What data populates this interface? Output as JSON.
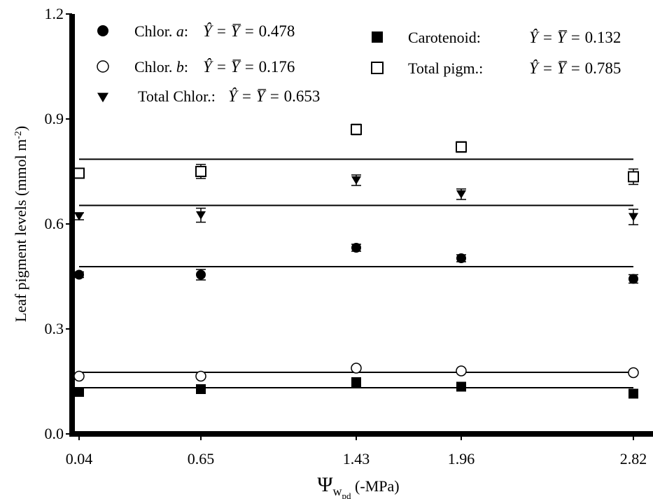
{
  "chart_data": {
    "type": "scatter",
    "xlabel_symbol": "Ψ",
    "xlabel_sub": "w",
    "xlabel_subsub": "pd",
    "xlabel_suffix": " (-MPa)",
    "ylabel": "Leaf pigment levels (mmol m",
    "ylabel_sup": "-2",
    "ylabel_close": ")",
    "x": [
      0.04,
      0.65,
      1.43,
      1.96,
      2.82
    ],
    "x_tick_labels": [
      "0.04",
      "0.65",
      "1.43",
      "1.96",
      "2.82"
    ],
    "x_axis_scale": "categorical-linear",
    "xlim": [
      0.0,
      2.85
    ],
    "ylim": [
      0.0,
      1.2
    ],
    "y_ticks": [
      0.0,
      0.3,
      0.6,
      0.9,
      1.2
    ],
    "y_tick_labels": [
      "0.0",
      "0.3",
      "0.6",
      "0.9",
      "1.2"
    ],
    "grid": false,
    "legend_position": "top",
    "series": [
      {
        "name": "Chlor. a",
        "name_main": "Chlor. ",
        "name_italic": "a",
        "name_suffix": ":",
        "marker": "filled-circle",
        "values": [
          0.455,
          0.455,
          0.532,
          0.502,
          0.443
        ],
        "errors": [
          0.008,
          0.015,
          0.01,
          0.01,
          0.012
        ],
        "fit_mean": 0.478,
        "equation_value": "0.478"
      },
      {
        "name": "Chlor. b",
        "name_main": "Chlor. ",
        "name_italic": "b",
        "name_suffix": ":",
        "marker": "open-circle",
        "values": [
          0.165,
          0.165,
          0.188,
          0.18,
          0.175
        ],
        "errors": [
          0.005,
          0.005,
          0.006,
          0.005,
          0.005
        ],
        "fit_mean": 0.176,
        "equation_value": "0.176"
      },
      {
        "name": "Total Chlor.",
        "name_main": "Total Chlor.",
        "name_italic": "",
        "name_suffix": ":",
        "marker": "filled-triangle-down",
        "values": [
          0.622,
          0.625,
          0.725,
          0.685,
          0.62
        ],
        "errors": [
          0.01,
          0.02,
          0.015,
          0.015,
          0.022
        ],
        "fit_mean": 0.653,
        "equation_value": "0.653"
      },
      {
        "name": "Carotenoid",
        "name_main": "Carotenoid",
        "name_italic": "",
        "name_suffix": ":",
        "marker": "filled-square",
        "values": [
          0.12,
          0.128,
          0.148,
          0.135,
          0.115
        ],
        "errors": [
          0.006,
          0.006,
          0.008,
          0.006,
          0.006
        ],
        "fit_mean": 0.132,
        "equation_value": "0.132"
      },
      {
        "name": "Total pigm.",
        "name_main": "Total pigm.",
        "name_italic": "",
        "name_suffix": ":",
        "marker": "open-square",
        "values": [
          0.745,
          0.75,
          0.87,
          0.82,
          0.735
        ],
        "errors": [
          0.01,
          0.02,
          0.015,
          0.015,
          0.022
        ],
        "fit_mean": 0.785,
        "equation_value": "0.785"
      }
    ],
    "equation_lhs": "Ŷ = Y̅ = "
  }
}
